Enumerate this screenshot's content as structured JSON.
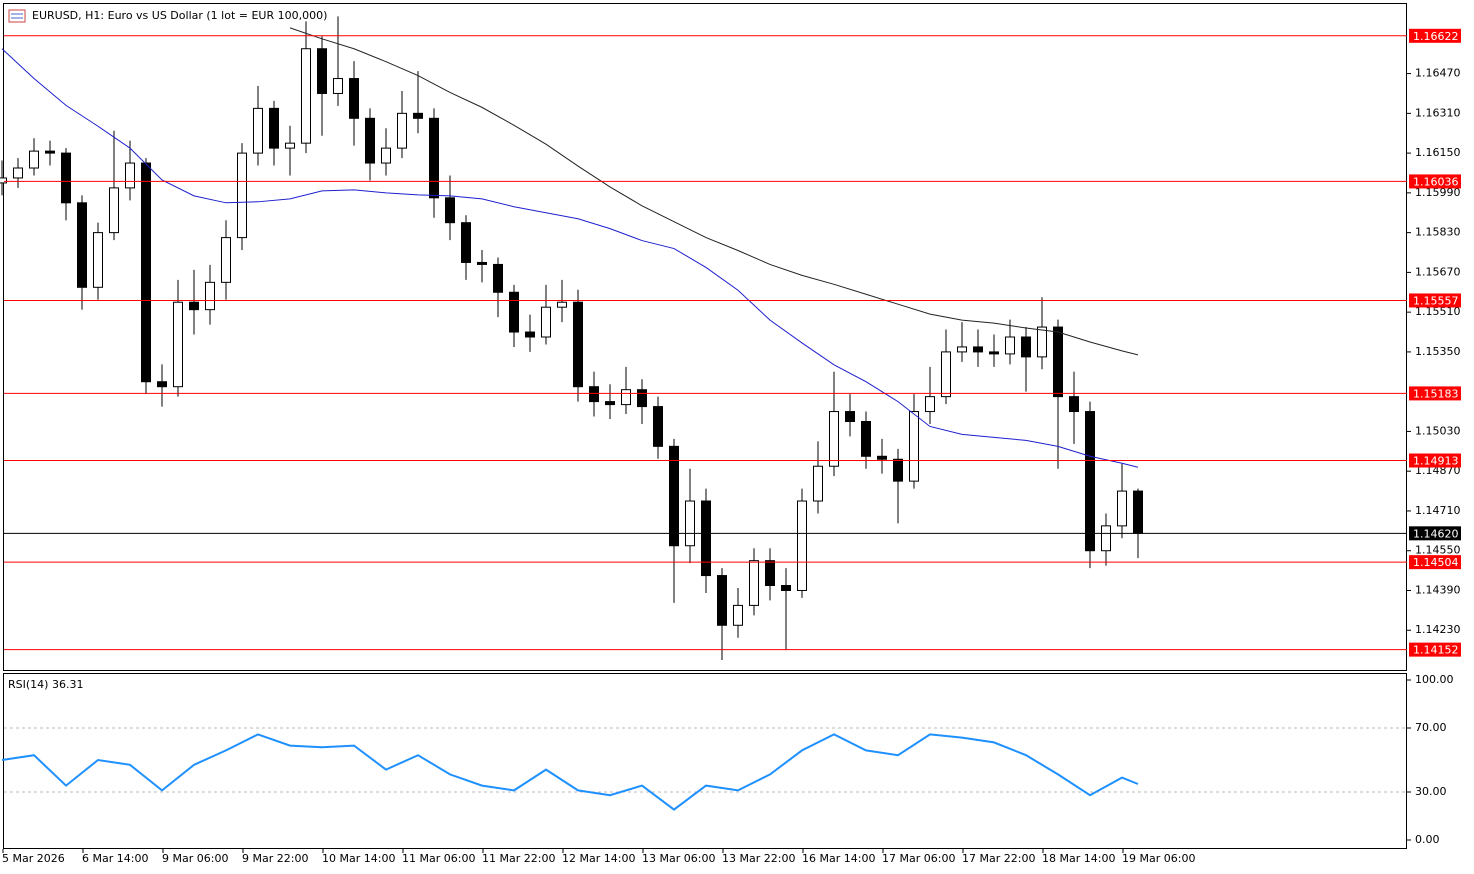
{
  "header": {
    "title": "EURUSD, H1:  Euro vs US Dollar (1 lot = EUR 100,000)"
  },
  "chart_data": [
    {
      "type": "candlestick",
      "title": "EURUSD, H1:  Euro vs US Dollar (1 lot = EUR 100,000)",
      "categories": [
        "5 Mar 2026",
        null,
        null,
        null,
        null,
        "6 Mar 14:00",
        null,
        null,
        null,
        null,
        "9 Mar 06:00",
        null,
        null,
        null,
        null,
        "9 Mar 22:00",
        null,
        null,
        null,
        null,
        "10 Mar 14:00",
        null,
        null,
        null,
        null,
        "11 Mar 06:00",
        null,
        null,
        null,
        null,
        "11 Mar 22:00",
        null,
        null,
        null,
        null,
        "12 Mar 14:00",
        null,
        null,
        null,
        null,
        "13 Mar 06:00",
        null,
        null,
        null,
        null,
        "13 Mar 22:00",
        null,
        null,
        null,
        null,
        "16 Mar 14:00",
        null,
        null,
        null,
        null,
        "17 Mar 06:00",
        null,
        null,
        null,
        null,
        "17 Mar 22:00",
        null,
        null,
        null,
        null,
        "18 Mar 14:00",
        null,
        null,
        null,
        null,
        "19 Mar 06:00",
        null
      ],
      "candles": {
        "open": [
          1.1603,
          1.1605,
          1.1609,
          1.16158,
          1.1615,
          1.1595,
          1.1561,
          1.1583,
          1.1601,
          1.1611,
          1.1523,
          1.1521,
          1.1555,
          1.1552,
          1.1563,
          1.1581,
          1.1615,
          1.1633,
          1.1617,
          1.1619,
          1.1657,
          1.1639,
          1.1645,
          1.1629,
          1.1611,
          1.1617,
          1.1631,
          1.1629,
          1.1597,
          1.1587,
          1.1571,
          1.15702,
          1.1559,
          1.1543,
          1.1541,
          1.1553,
          1.1555,
          1.1521,
          1.1515,
          1.15138,
          1.15198,
          1.1513,
          1.1497,
          1.1457,
          1.1475,
          1.1445,
          1.1425,
          1.1433,
          1.1451,
          1.1441,
          1.1439,
          1.1475,
          1.1489,
          1.1511,
          1.1507,
          1.1493,
          1.14918,
          1.1483,
          1.1511,
          1.1517,
          1.1535,
          1.1537,
          1.1535,
          1.15342,
          1.1541,
          1.1533,
          1.1545,
          1.1517,
          1.1511,
          1.1455,
          1.1465,
          1.1479
        ],
        "high": [
          1.1612,
          1.1613,
          1.1621,
          1.162,
          1.1617,
          1.1598,
          1.1587,
          1.1624,
          1.162,
          1.1613,
          1.153,
          1.1564,
          1.1568,
          1.157,
          1.1588,
          1.1619,
          1.1642,
          1.1636,
          1.1626,
          1.1668,
          1.1662,
          1.167,
          1.1652,
          1.1633,
          1.1625,
          1.164,
          1.1648,
          1.1633,
          1.1606,
          1.159,
          1.1576,
          1.1573,
          1.1562,
          1.155,
          1.1562,
          1.1564,
          1.156,
          1.1527,
          1.1522,
          1.1529,
          1.1524,
          1.1517,
          1.15,
          1.1488,
          1.148,
          1.1448,
          1.144,
          1.1456,
          1.1456,
          1.1448,
          1.148,
          1.1499,
          1.1527,
          1.1518,
          1.1511,
          1.15,
          1.1496,
          1.1518,
          1.1529,
          1.1544,
          1.1547,
          1.1544,
          1.1542,
          1.1548,
          1.1545,
          1.1557,
          1.1548,
          1.1527,
          1.1515,
          1.147,
          1.149,
          1.148
        ],
        "low": [
          1.1598,
          1.1601,
          1.1606,
          1.161,
          1.1588,
          1.1552,
          1.1556,
          1.158,
          1.1596,
          1.1518,
          1.1513,
          1.1517,
          1.1542,
          1.1546,
          1.1556,
          1.1576,
          1.161,
          1.161,
          1.1606,
          1.1615,
          1.1622,
          1.1634,
          1.1618,
          1.1604,
          1.1606,
          1.1613,
          1.1623,
          1.1589,
          1.158,
          1.1564,
          1.1563,
          1.1549,
          1.1537,
          1.1535,
          1.1538,
          1.1547,
          1.1515,
          1.1509,
          1.1508,
          1.151,
          1.1506,
          1.1492,
          1.1434,
          1.145,
          1.1438,
          1.1411,
          1.142,
          1.1429,
          1.1435,
          1.1415,
          1.1436,
          1.147,
          1.1485,
          1.1501,
          1.1488,
          1.1486,
          1.1466,
          1.148,
          1.1506,
          1.1514,
          1.1531,
          1.1529,
          1.1529,
          1.153,
          1.1519,
          1.1528,
          1.1488,
          1.1498,
          1.1448,
          1.1449,
          1.146,
          1.1452
        ],
        "close": [
          1.1605,
          1.1609,
          1.16158,
          1.1615,
          1.1595,
          1.1561,
          1.1583,
          1.1601,
          1.1611,
          1.1523,
          1.1521,
          1.1555,
          1.1552,
          1.1563,
          1.1581,
          1.1615,
          1.1633,
          1.1617,
          1.1619,
          1.1657,
          1.1639,
          1.1645,
          1.1629,
          1.1611,
          1.1617,
          1.1631,
          1.1629,
          1.1597,
          1.1587,
          1.1571,
          1.15702,
          1.1559,
          1.1543,
          1.1541,
          1.1553,
          1.1555,
          1.1521,
          1.1515,
          1.15138,
          1.15198,
          1.1513,
          1.1497,
          1.1457,
          1.1475,
          1.1445,
          1.1425,
          1.1433,
          1.1451,
          1.1441,
          1.1439,
          1.1475,
          1.1489,
          1.1511,
          1.1507,
          1.1493,
          1.14918,
          1.1483,
          1.1511,
          1.1517,
          1.1535,
          1.1537,
          1.1535,
          1.15342,
          1.1541,
          1.1533,
          1.1545,
          1.1517,
          1.1511,
          1.1455,
          1.1465,
          1.1479,
          1.1462
        ]
      },
      "overlays": [
        {
          "color": "#1f1fcf",
          "x": [
            0,
            2,
            4,
            6,
            8,
            10,
            12,
            14,
            16,
            18,
            20,
            22,
            24,
            26,
            28,
            30,
            32,
            34,
            36,
            38,
            40,
            42,
            44,
            46,
            48,
            50,
            52,
            54,
            56,
            58,
            60,
            62,
            64,
            66,
            68,
            70,
            71
          ],
          "values": [
            1.1657,
            1.1645,
            1.16342,
            1.16258,
            1.1617,
            1.16042,
            1.15978,
            1.1595,
            1.15954,
            1.15966,
            1.15998,
            1.16002,
            1.1599,
            1.15982,
            1.15978,
            1.15966,
            1.15934,
            1.1591,
            1.15886,
            1.15846,
            1.15798,
            1.15766,
            1.1569,
            1.15598,
            1.15478,
            1.15386,
            1.15298,
            1.1523,
            1.1515,
            1.1505,
            1.15018,
            1.15006,
            1.14994,
            1.1497,
            1.1493,
            1.14902,
            1.14886
          ]
        },
        {
          "color": "#222222",
          "x": [
            18,
            20,
            22,
            24,
            26,
            28,
            30,
            32,
            34,
            36,
            38,
            40,
            42,
            44,
            46,
            48,
            50,
            52,
            54,
            56,
            58,
            60,
            62,
            64,
            66,
            68,
            70,
            71
          ],
          "values": [
            1.16654,
            1.1661,
            1.1657,
            1.16518,
            1.16462,
            1.16394,
            1.16334,
            1.16262,
            1.16186,
            1.16098,
            1.16014,
            1.15938,
            1.15874,
            1.1581,
            1.15758,
            1.15702,
            1.15658,
            1.15622,
            1.15582,
            1.15542,
            1.15502,
            1.15478,
            1.15466,
            1.15446,
            1.1543,
            1.1539,
            1.15354,
            1.15338
          ]
        }
      ],
      "levels": {
        "color": "#ff0000",
        "values": [
          1.16622,
          1.16036,
          1.15557,
          1.15183,
          1.14913,
          1.14504,
          1.14152
        ]
      },
      "current_price": {
        "value": 1.1462,
        "label": "1.14620"
      },
      "ylim": [
        1.1407,
        1.1675
      ],
      "yticks": [
        {
          "value": 1.1647,
          "label": "1.16470"
        },
        {
          "value": 1.1631,
          "label": "1.16310"
        },
        {
          "value": 1.1615,
          "label": "1.16150"
        },
        {
          "value": 1.1599,
          "label": "1.15990"
        },
        {
          "value": 1.1583,
          "label": "1.15830"
        },
        {
          "value": 1.1567,
          "label": "1.15670"
        },
        {
          "value": 1.1551,
          "label": "1.15510"
        },
        {
          "value": 1.1535,
          "label": "1.15350"
        },
        {
          "value": 1.1503,
          "label": "1.15030"
        },
        {
          "value": 1.1487,
          "label": "1.14870"
        },
        {
          "value": 1.1471,
          "label": "1.14710"
        },
        {
          "value": 1.1455,
          "label": "1.14550"
        },
        {
          "value": 1.1439,
          "label": "1.14390"
        },
        {
          "value": 1.1423,
          "label": "1.14230"
        }
      ]
    },
    {
      "type": "line",
      "title": "RSI(14) 36.31",
      "x": [
        0,
        2,
        4,
        6,
        8,
        10,
        12,
        14,
        16,
        18,
        20,
        22,
        24,
        26,
        28,
        30,
        32,
        34,
        36,
        38,
        40,
        42,
        44,
        46,
        48,
        50,
        52,
        54,
        56,
        58,
        60,
        62,
        64,
        66,
        68,
        70,
        71
      ],
      "series": [
        {
          "color": "#1e90ff",
          "values": [
            50,
            53,
            34,
            50,
            47,
            31,
            47,
            56,
            66,
            59,
            58,
            59,
            44,
            53,
            41,
            34,
            31,
            44,
            31,
            28,
            34,
            19,
            34,
            31,
            41,
            56,
            66,
            56,
            53,
            66,
            64,
            61,
            53,
            41,
            28,
            39,
            35
          ]
        }
      ],
      "ylim": [
        0,
        100
      ],
      "yticks": [
        {
          "value": 0,
          "label": "0.00"
        },
        {
          "value": 30,
          "label": "30.00"
        },
        {
          "value": 70,
          "label": "70.00"
        },
        {
          "value": 100,
          "label": "100.00"
        }
      ]
    }
  ]
}
